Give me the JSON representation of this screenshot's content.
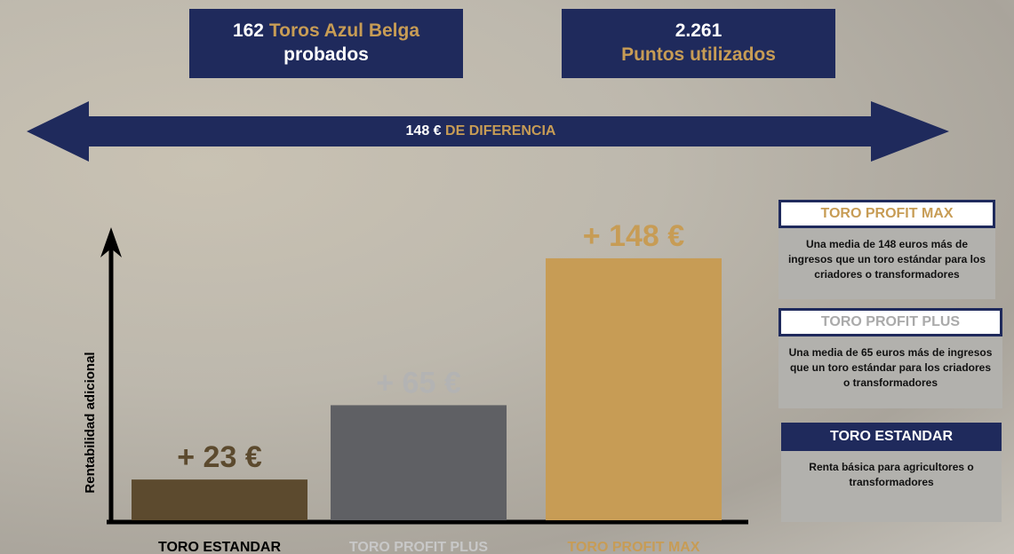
{
  "header": {
    "tested": {
      "count": "162",
      "name": "Toros Azul Belga",
      "suffix": "probados"
    },
    "points": {
      "count": "2.261",
      "label": "Puntos utilizados"
    }
  },
  "difference": {
    "amount": "148 €",
    "label": "DE DIFERENCIA"
  },
  "chart_data": {
    "type": "bar",
    "y_label": "Rentabilidad adicional",
    "categories": [
      "TORO ESTANDAR",
      "TORO PROFIT PLUS",
      "TORO PROFIT MAX"
    ],
    "values": [
      23,
      65,
      148
    ],
    "value_labels": [
      "+ 23 €",
      "+ 65 €",
      "+ 148 €"
    ],
    "colors": [
      "#5c4a2e",
      "#5f6064",
      "#c79c55"
    ],
    "label_colors": [
      "#5c4a2e",
      "#b3b3b3",
      "#c79c55"
    ],
    "category_colors": [
      "#000000",
      "#c8c8c8",
      "#c79c55"
    ],
    "ylim": [
      0,
      160
    ]
  },
  "legend": [
    {
      "title": "TORO PROFIT MAX",
      "description": "Una media de 148 euros más de ingresos que un toro estándar para los criadores o transformadores"
    },
    {
      "title": "TORO PROFIT PLUS",
      "description": "Una media de 65 euros más de ingresos que un toro estándar para los criadores o transformadores"
    },
    {
      "title": "TORO ESTANDAR",
      "description": "Renta básica para agricultores o transformadores"
    }
  ]
}
